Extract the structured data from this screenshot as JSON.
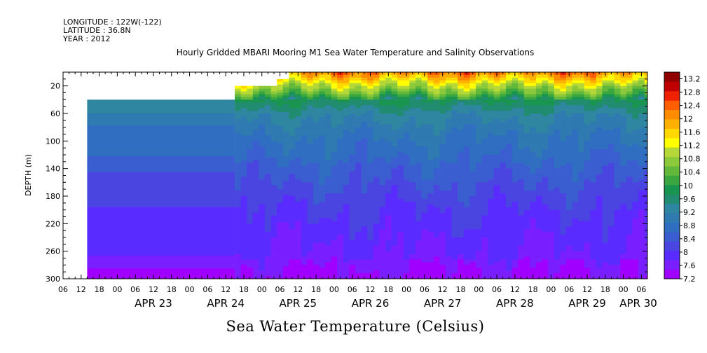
{
  "header": {
    "longitude": "LONGITUDE : 122W(-122)",
    "latitude": "LATITUDE : 36.8N",
    "year": "YEAR : 2012"
  },
  "colors": {
    "palette": [
      "#a000ff",
      "#7a1fff",
      "#5a2bff",
      "#4a44e0",
      "#3a5ed0",
      "#2f6ec0",
      "#2f7ab0",
      "#2e86a0",
      "#228c70",
      "#1a9550",
      "#3aa640",
      "#62b83a",
      "#8bc83a",
      "#b5d838",
      "#ffff00",
      "#ffd800",
      "#ffb000",
      "#ff8c00",
      "#ff5e00",
      "#ee2000",
      "#c00000",
      "#900000"
    ]
  },
  "chart_data": {
    "type": "heatmap",
    "title": "Hourly Gridded MBARI Mooring M1 Sea Water Temperature and Salinity Observations",
    "ylabel": "DEPTH (m)",
    "xlabel": "Sea Water Temperature (Celsius)",
    "y_reversed": true,
    "ylim": [
      0,
      300
    ],
    "xlim": [
      "2012-04-22T06:00",
      "2012-04-30T08:00"
    ],
    "y_ticks": [
      20,
      60,
      100,
      140,
      180,
      220,
      260,
      300
    ],
    "x_hour_ticks": [
      "06",
      "12",
      "18",
      "00",
      "06",
      "12",
      "18",
      "00",
      "06",
      "12",
      "18",
      "00",
      "06",
      "12",
      "18",
      "00",
      "06",
      "12",
      "18",
      "00",
      "06",
      "12",
      "18",
      "00",
      "06",
      "12",
      "18",
      "00",
      "06",
      "12",
      "18",
      "00",
      "06"
    ],
    "x_day_labels": [
      "APR 23",
      "APR 24",
      "APR 25",
      "APR 26",
      "APR 27",
      "APR 28",
      "APR 29",
      "APR 30"
    ],
    "colorbar_ticks": [
      7.2,
      7.6,
      8,
      8.4,
      8.8,
      9.2,
      9.6,
      10,
      10.4,
      10.8,
      11.2,
      11.6,
      12,
      12.4,
      12.8,
      13.2
    ],
    "colorbar_range": [
      7.2,
      13.4
    ],
    "data_start": "2012-04-22T14:00",
    "depth_profile": [
      {
        "depth": 0,
        "temp": 12.2
      },
      {
        "depth": 10,
        "temp": 11.6
      },
      {
        "depth": 20,
        "temp": 11.0
      },
      {
        "depth": 30,
        "temp": 10.5
      },
      {
        "depth": 40,
        "temp": 9.8
      },
      {
        "depth": 60,
        "temp": 9.3
      },
      {
        "depth": 80,
        "temp": 9.05
      },
      {
        "depth": 100,
        "temp": 8.85
      },
      {
        "depth": 120,
        "temp": 8.7
      },
      {
        "depth": 140,
        "temp": 8.5
      },
      {
        "depth": 160,
        "temp": 8.35
      },
      {
        "depth": 180,
        "temp": 8.2
      },
      {
        "depth": 200,
        "temp": 8.05
      },
      {
        "depth": 220,
        "temp": 7.95
      },
      {
        "depth": 240,
        "temp": 7.85
      },
      {
        "depth": 260,
        "temp": 7.75
      },
      {
        "depth": 280,
        "temp": 7.6
      },
      {
        "depth": 300,
        "temp": 7.45
      }
    ],
    "early_bands": [
      {
        "depth_top": 40,
        "depth_bottom": 60,
        "temp": 9.3
      },
      {
        "depth_top": 60,
        "depth_bottom": 77,
        "temp": 9.05
      },
      {
        "depth_top": 77,
        "depth_bottom": 100,
        "temp": 8.85
      },
      {
        "depth_top": 100,
        "depth_bottom": 122,
        "temp": 8.7
      },
      {
        "depth_top": 122,
        "depth_bottom": 145,
        "temp": 8.5
      },
      {
        "depth_top": 145,
        "depth_bottom": 170,
        "temp": 8.3
      },
      {
        "depth_top": 170,
        "depth_bottom": 196,
        "temp": 8.15
      },
      {
        "depth_top": 196,
        "depth_bottom": 267,
        "temp": 7.95
      },
      {
        "depth_top": 267,
        "depth_bottom": 285,
        "temp": 7.7
      },
      {
        "depth_top": 285,
        "depth_bottom": 300,
        "temp": 7.45
      }
    ],
    "shallow_start": [
      {
        "time": "2012-04-24T15:00",
        "depth": 20
      },
      {
        "time": "2012-04-25T04:00",
        "depth": 10
      },
      {
        "time": "2012-04-25T08:00",
        "depth": 0
      }
    ]
  }
}
